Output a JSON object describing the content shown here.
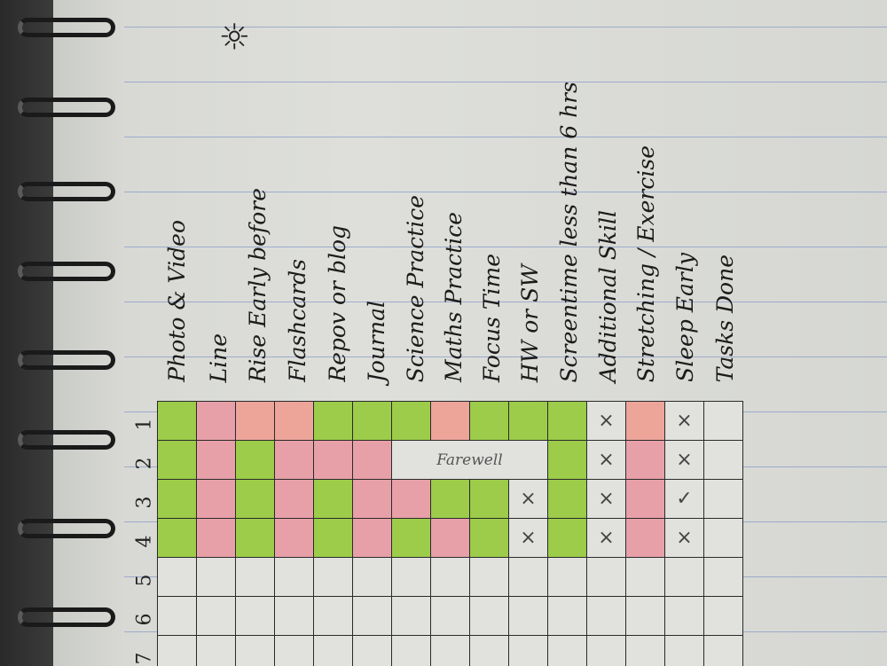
{
  "columns": [
    "Photo & Video",
    "Line",
    "Rise Early before",
    "Flashcards",
    "Repov or blog",
    "Journal",
    "Science Practice",
    "Maths Practice",
    "Focus Time",
    "HW or SW",
    "Screentime less than 6 hrs",
    "Additional Skill",
    "Stretching / Exercise",
    "Sleep Early",
    "Tasks Done"
  ],
  "rows": [
    {
      "label": "1",
      "cells": [
        "green",
        "pink",
        "pink",
        "pink",
        "green",
        "green",
        "green",
        "pink",
        "green",
        "green",
        "green",
        "×",
        "pink",
        "×",
        ""
      ]
    },
    {
      "label": "2",
      "cells": [
        "green",
        "pink",
        "green",
        "pink",
        "pink",
        "pink",
        "note",
        "note",
        "note",
        "note",
        "green",
        "×",
        "pink",
        "×",
        ""
      ]
    },
    {
      "label": "3",
      "cells": [
        "green",
        "pink",
        "green",
        "pink",
        "green",
        "pink",
        "pink",
        "green",
        "green",
        "×",
        "green",
        "×",
        "pink",
        "✓",
        ""
      ]
    },
    {
      "label": "4",
      "cells": [
        "green",
        "pink",
        "green",
        "pink",
        "green",
        "pink",
        "green",
        "pink",
        "green",
        "×",
        "green",
        "×",
        "pink",
        "×",
        ""
      ]
    },
    {
      "label": "5",
      "cells": [
        "",
        "",
        "",
        "",
        "",
        "",
        "",
        "",
        "",
        "",
        "",
        "",
        "",
        "",
        ""
      ]
    },
    {
      "label": "6",
      "cells": [
        "",
        "",
        "",
        "",
        "",
        "",
        "",
        "",
        "",
        "",
        "",
        "",
        "",
        "",
        ""
      ]
    },
    {
      "label": "7",
      "cells": [
        "",
        "",
        "",
        "",
        "",
        "",
        "",
        "",
        "",
        "",
        "",
        "",
        "",
        "",
        ""
      ]
    }
  ],
  "note": "Farewell",
  "doodle": "sun-icon",
  "colors": {
    "done": "#9ccc4a",
    "missed": "#e8a0a8"
  }
}
